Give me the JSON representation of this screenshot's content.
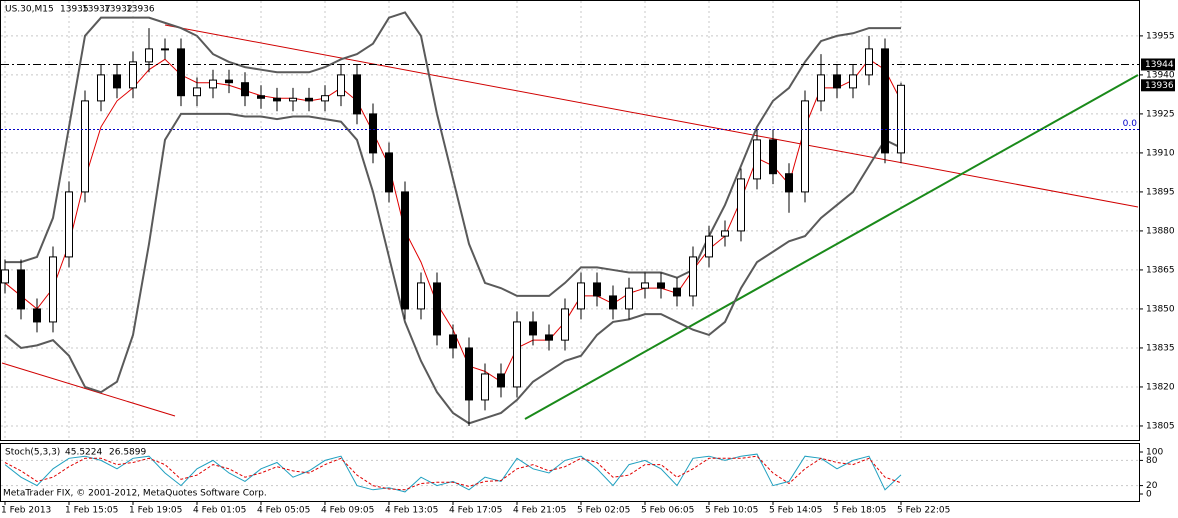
{
  "chart_data": [
    {
      "type": "candlestick",
      "title": "US.30,M15",
      "quote": [
        13935,
        13937,
        13932,
        13936
      ],
      "categories": [
        "1 Feb 2013",
        null,
        null,
        null,
        "1 Feb 15:05",
        null,
        null,
        null,
        "1 Feb 19:05",
        null,
        null,
        null,
        "4 Feb 01:05",
        null,
        null,
        null,
        "4 Feb 05:05",
        null,
        null,
        null,
        "4 Feb 09:05",
        null,
        null,
        null,
        "4 Feb 13:05",
        null,
        null,
        null,
        "4 Feb 17:05",
        null,
        null,
        null,
        "4 Feb 21:05",
        null,
        null,
        null,
        "5 Feb 02:05",
        null,
        null,
        null,
        "5 Feb 06:05",
        null,
        null,
        null,
        "5 Feb 10:05",
        null,
        null,
        null,
        "5 Feb 14:05",
        null,
        null,
        null,
        "5 Feb 18:05",
        null,
        null,
        null,
        "5 Feb 22:05"
      ],
      "open": [
        13860,
        13865,
        13850,
        13845,
        13870,
        13895,
        13930,
        13940,
        13935,
        13945,
        13950,
        13950,
        13932,
        13935,
        13938,
        13937,
        13932,
        13931,
        13930,
        13931,
        13930,
        13932,
        13940,
        13925,
        13910,
        13895,
        13850,
        13860,
        13840,
        13835,
        13815,
        13825,
        13820,
        13845,
        13840,
        13838,
        13850,
        13860,
        13855,
        13850,
        13858,
        13860,
        13858,
        13855,
        13870,
        13878,
        13880,
        13900,
        13915,
        13902,
        13895,
        13930,
        13940,
        13935,
        13940,
        13950,
        13910
      ],
      "high": [
        13869,
        13869,
        13854,
        13874,
        13899,
        13934,
        13944,
        13944,
        13949,
        13958,
        13954,
        13954,
        13939,
        13942,
        13942,
        13941,
        13936,
        13935,
        13935,
        13935,
        13936,
        13944,
        13944,
        13929,
        13914,
        13899,
        13864,
        13864,
        13844,
        13839,
        13829,
        13829,
        13849,
        13849,
        13844,
        13854,
        13864,
        13864,
        13859,
        13862,
        13864,
        13864,
        13862,
        13874,
        13882,
        13884,
        13904,
        13919,
        13919,
        13906,
        13934,
        13948,
        13944,
        13944,
        13955,
        13954,
        13937
      ],
      "low": [
        13856,
        13846,
        13841,
        13841,
        13866,
        13891,
        13926,
        13931,
        13931,
        13941,
        13946,
        13928,
        13928,
        13931,
        13933,
        13928,
        13927,
        13926,
        13926,
        13926,
        13926,
        13928,
        13921,
        13906,
        13891,
        13846,
        13846,
        13836,
        13831,
        13805,
        13811,
        13816,
        13816,
        13836,
        13834,
        13834,
        13846,
        13851,
        13846,
        13846,
        13854,
        13854,
        13851,
        13851,
        13866,
        13874,
        13876,
        13896,
        13898,
        13887,
        13891,
        13926,
        13931,
        13931,
        13936,
        13906,
        13906
      ],
      "close": [
        13865,
        13850,
        13845,
        13870,
        13895,
        13930,
        13940,
        13935,
        13945,
        13950,
        13950,
        13932,
        13935,
        13938,
        13937,
        13932,
        13931,
        13930,
        13931,
        13930,
        13932,
        13940,
        13925,
        13910,
        13895,
        13850,
        13860,
        13840,
        13835,
        13815,
        13825,
        13820,
        13845,
        13840,
        13838,
        13850,
        13860,
        13855,
        13850,
        13858,
        13860,
        13858,
        13855,
        13870,
        13878,
        13880,
        13900,
        13915,
        13902,
        13895,
        13930,
        13940,
        13935,
        13940,
        13950,
        13910,
        13936
      ],
      "lines": [
        {
          "color": "#5a5a5a",
          "values": [
            13868,
            13868,
            13870,
            13885,
            13920,
            13955,
            13962,
            13962,
            13962,
            13962,
            13960,
            13958,
            13955,
            13948,
            13945,
            13943,
            13942,
            13941,
            13941,
            13941,
            13943,
            13946,
            13948,
            13952,
            13962,
            13964,
            13955,
            13925,
            13900,
            13875,
            13860,
            13858,
            13855,
            13855,
            13855,
            13860,
            13866,
            13866,
            13865,
            13864,
            13864,
            13864,
            13862,
            13865,
            13878,
            13890,
            13905,
            13920,
            13930,
            13935,
            13945,
            13953,
            13955,
            13956,
            13958,
            13958,
            13958
          ]
        },
        {
          "color": "#5a5a5a",
          "values": [
            13840,
            13835,
            13836,
            13838,
            13832,
            13820,
            13818,
            13822,
            13840,
            13875,
            13915,
            13925,
            13925,
            13925,
            13925,
            13924,
            13924,
            13923,
            13924,
            13924,
            13923,
            13922,
            13915,
            13895,
            13870,
            13845,
            13830,
            13818,
            13810,
            13806,
            13808,
            13810,
            13815,
            13822,
            13826,
            13830,
            13832,
            13840,
            13845,
            13846,
            13848,
            13848,
            13845,
            13842,
            13840,
            13845,
            13858,
            13868,
            13872,
            13876,
            13878,
            13885,
            13890,
            13895,
            13905,
            13915,
            13912
          ]
        },
        {
          "color": "#e00000",
          "values": [
            13860,
            13855,
            13850,
            13858,
            13875,
            13900,
            13920,
            13930,
            13935,
            13942,
            13946,
            13940,
            13937,
            13937,
            13936,
            13934,
            13932,
            13931,
            13931,
            13930,
            13931,
            13935,
            13930,
            13918,
            13905,
            13880,
            13868,
            13852,
            13842,
            13828,
            13826,
            13822,
            13835,
            13838,
            13838,
            13845,
            13855,
            13855,
            13852,
            13856,
            13858,
            13858,
            13856,
            13865,
            13873,
            13878,
            13892,
            13908,
            13905,
            13898,
            13920,
            13935,
            13935,
            13938,
            13946,
            13942,
            13930
          ]
        }
      ],
      "hlines": [
        {
          "value": 13944,
          "color": "#000000"
        },
        {
          "value": 13919,
          "label": "0.0",
          "color": "#0000c8"
        }
      ],
      "ylim": [
        13799.6,
        13968.8
      ],
      "yticks": [
        13805,
        13820,
        13835,
        13850,
        13865,
        13880,
        13895,
        13910,
        13925,
        13940,
        13955
      ],
      "grid": true,
      "footer": "MetaTrader FIX, © 2001-2012, MetaQuotes Software Corp."
    },
    {
      "type": "line",
      "title": "Stoch(5,3,3)",
      "series": [
        {
          "color": "#20a0c0",
          "values": [
            70,
            40,
            20,
            60,
            85,
            90,
            80,
            60,
            85,
            90,
            50,
            20,
            60,
            80,
            50,
            30,
            60,
            75,
            40,
            55,
            80,
            90,
            20,
            10,
            15,
            5,
            40,
            20,
            30,
            10,
            40,
            30,
            85,
            60,
            50,
            80,
            90,
            60,
            20,
            70,
            80,
            60,
            20,
            85,
            90,
            80,
            90,
            95,
            20,
            30,
            90,
            85,
            60,
            80,
            90,
            10,
            45.5224
          ]
        },
        {
          "color": "#e00000",
          "dashed": true,
          "values": [
            75,
            55,
            30,
            40,
            65,
            85,
            85,
            70,
            75,
            85,
            70,
            35,
            45,
            70,
            60,
            40,
            50,
            65,
            55,
            50,
            70,
            85,
            45,
            20,
            12,
            10,
            25,
            28,
            28,
            18,
            30,
            32,
            60,
            70,
            55,
            65,
            85,
            75,
            40,
            45,
            70,
            70,
            40,
            60,
            85,
            85,
            85,
            90,
            50,
            25,
            60,
            85,
            75,
            70,
            85,
            40,
            26.5899
          ]
        }
      ],
      "ylim": [
        0,
        100
      ],
      "yticks": [
        0,
        20,
        80,
        100
      ],
      "levels": [
        20,
        80
      ]
    }
  ]
}
